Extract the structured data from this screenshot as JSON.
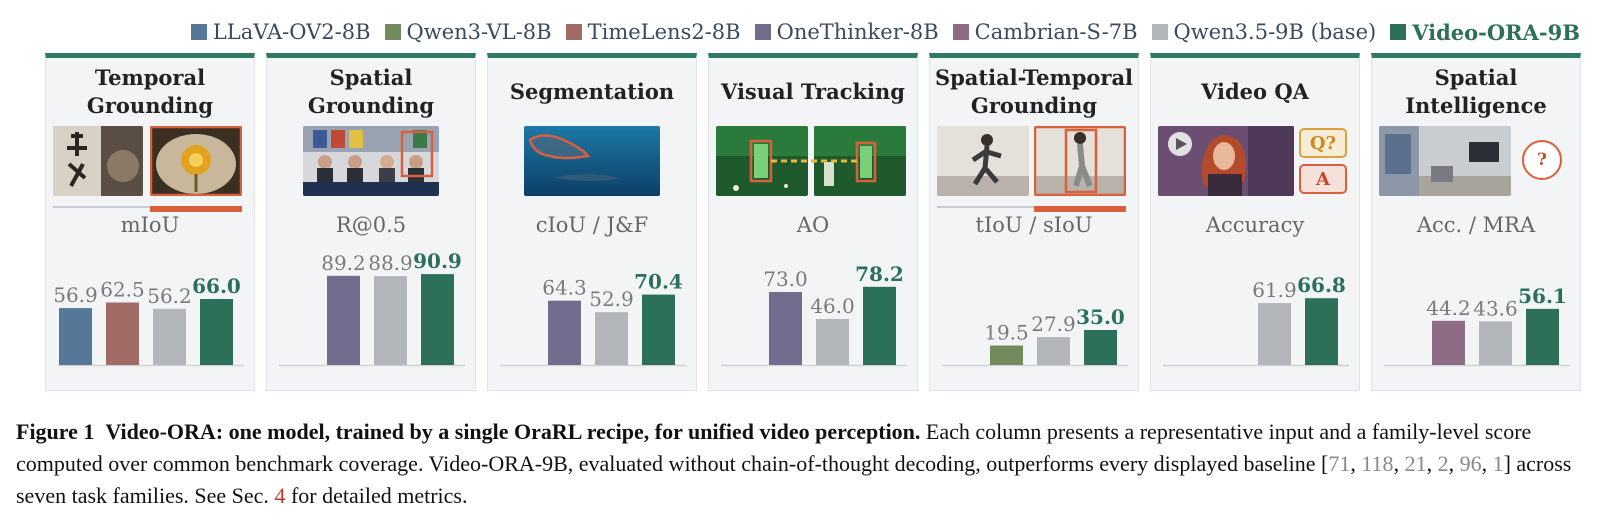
{
  "legend": [
    {
      "name": "LLaVA-OV2-8B",
      "color": "#567898"
    },
    {
      "name": "Qwen3-VL-8B",
      "color": "#738a5c"
    },
    {
      "name": "TimeLens2-8B",
      "color": "#a26a64"
    },
    {
      "name": "OneThinker-8B",
      "color": "#716d8f"
    },
    {
      "name": "Cambrian-S-7B",
      "color": "#8e6b85"
    },
    {
      "name": "Qwen3.5-9B (base)",
      "color": "#b2b6bb"
    },
    {
      "name": "Video-ORA-9B",
      "color": "#2c7059"
    }
  ],
  "panels": [
    {
      "title": "Temporal Grounding",
      "metric": "mIoU"
    },
    {
      "title": "Spatial Grounding",
      "metric": "R@0.5"
    },
    {
      "title": "Segmentation",
      "metric": "cIoU / J&F"
    },
    {
      "title": "Visual Tracking",
      "metric": "AO"
    },
    {
      "title": "Spatial-Temporal Grounding",
      "metric": "tIoU / sIoU"
    },
    {
      "title": "Video QA",
      "metric": "Accuracy",
      "q_badge": "Q?",
      "a_badge": "A"
    },
    {
      "title": "Spatial Intelligence",
      "metric": "Acc. / MRA",
      "question_badge": "?"
    }
  ],
  "chart_data": {
    "type": "bar",
    "y_range": [
      0,
      100
    ],
    "groups": [
      {
        "task": "Temporal Grounding",
        "metric": "mIoU",
        "bars": [
          {
            "series": "LLaVA-OV2-8B",
            "value": 56.9
          },
          {
            "series": "TimeLens2-8B",
            "value": 62.5
          },
          {
            "series": "Qwen3.5-9B (base)",
            "value": 56.2
          },
          {
            "series": "Video-ORA-9B",
            "value": 66.0
          }
        ]
      },
      {
        "task": "Spatial Grounding",
        "metric": "R@0.5",
        "bars": [
          {
            "series": "OneThinker-8B",
            "value": 89.2
          },
          {
            "series": "Qwen3.5-9B (base)",
            "value": 88.9
          },
          {
            "series": "Video-ORA-9B",
            "value": 90.9
          }
        ]
      },
      {
        "task": "Segmentation",
        "metric": "cIoU / J&F",
        "bars": [
          {
            "series": "OneThinker-8B",
            "value": 64.3
          },
          {
            "series": "Qwen3.5-9B (base)",
            "value": 52.9
          },
          {
            "series": "Video-ORA-9B",
            "value": 70.4
          }
        ]
      },
      {
        "task": "Visual Tracking",
        "metric": "AO",
        "bars": [
          {
            "series": "OneThinker-8B",
            "value": 73.0
          },
          {
            "series": "Qwen3.5-9B (base)",
            "value": 46.0
          },
          {
            "series": "Video-ORA-9B",
            "value": 78.2
          }
        ]
      },
      {
        "task": "Spatial-Temporal Grounding",
        "metric": "tIoU / sIoU",
        "bars": [
          {
            "series": "Qwen3-VL-8B",
            "value": 19.5
          },
          {
            "series": "Qwen3.5-9B (base)",
            "value": 27.9
          },
          {
            "series": "Video-ORA-9B",
            "value": 35.0
          }
        ]
      },
      {
        "task": "Video QA",
        "metric": "Accuracy",
        "bars": [
          {
            "series": "Qwen3.5-9B (base)",
            "value": 61.9
          },
          {
            "series": "Video-ORA-9B",
            "value": 66.8
          }
        ]
      },
      {
        "task": "Spatial Intelligence",
        "metric": "Acc. / MRA",
        "bars": [
          {
            "series": "Cambrian-S-7B",
            "value": 44.2
          },
          {
            "series": "Qwen3.5-9B (base)",
            "value": 43.6
          },
          {
            "series": "Video-ORA-9B",
            "value": 56.1
          }
        ]
      }
    ]
  },
  "caption": {
    "label": "Figure 1",
    "title": "Video-ORA: one model, trained by a single OraRL recipe, for unified video perception.",
    "text1": " Each column presents a representative input and a family-level score computed over common benchmark coverage. Video-ORA-9B, evaluated without chain-of-thought decoding, outperforms every displayed baseline [",
    "refs": [
      "71",
      "118",
      "21",
      "2",
      "96",
      "1"
    ],
    "text2": "] across seven task families. See Sec. ",
    "sec": "4",
    "text3": " for detailed metrics."
  }
}
